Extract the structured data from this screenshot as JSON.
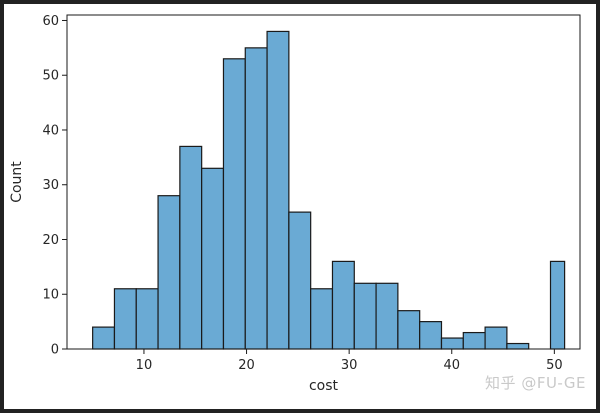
{
  "watermark": "知乎 @FU-GE",
  "chart_data": {
    "type": "bar",
    "title": "",
    "xlabel": "cost",
    "ylabel": "Count",
    "xlim": [
      2.5,
      52.5
    ],
    "ylim": [
      0,
      61
    ],
    "xticks": [
      10,
      20,
      30,
      40,
      50
    ],
    "yticks": [
      0,
      10,
      20,
      30,
      40,
      50,
      60
    ],
    "grid": false,
    "bar_fill": "#6aaad4",
    "bar_edge": "#1a1a1a",
    "bins": [
      {
        "x0": 5.0,
        "x1": 7.125,
        "count": 4
      },
      {
        "x0": 7.125,
        "x1": 9.25,
        "count": 11
      },
      {
        "x0": 9.25,
        "x1": 11.375,
        "count": 11
      },
      {
        "x0": 11.375,
        "x1": 13.5,
        "count": 28
      },
      {
        "x0": 13.5,
        "x1": 15.625,
        "count": 37
      },
      {
        "x0": 15.625,
        "x1": 17.75,
        "count": 33
      },
      {
        "x0": 17.75,
        "x1": 19.875,
        "count": 53
      },
      {
        "x0": 19.875,
        "x1": 22.0,
        "count": 55
      },
      {
        "x0": 22.0,
        "x1": 24.125,
        "count": 58
      },
      {
        "x0": 24.125,
        "x1": 26.25,
        "count": 25
      },
      {
        "x0": 26.25,
        "x1": 28.375,
        "count": 11
      },
      {
        "x0": 28.375,
        "x1": 30.5,
        "count": 16
      },
      {
        "x0": 30.5,
        "x1": 32.625,
        "count": 12
      },
      {
        "x0": 32.625,
        "x1": 34.75,
        "count": 12
      },
      {
        "x0": 34.75,
        "x1": 36.875,
        "count": 7
      },
      {
        "x0": 36.875,
        "x1": 39.0,
        "count": 5
      },
      {
        "x0": 39.0,
        "x1": 41.125,
        "count": 2
      },
      {
        "x0": 41.125,
        "x1": 43.25,
        "count": 3
      },
      {
        "x0": 43.25,
        "x1": 45.375,
        "count": 4
      },
      {
        "x0": 45.375,
        "x1": 47.5,
        "count": 1
      },
      {
        "x0": 47.5,
        "x1": 49.625,
        "count": 0
      },
      {
        "x0": 49.625,
        "x1": 51.0,
        "count": 16
      }
    ]
  }
}
